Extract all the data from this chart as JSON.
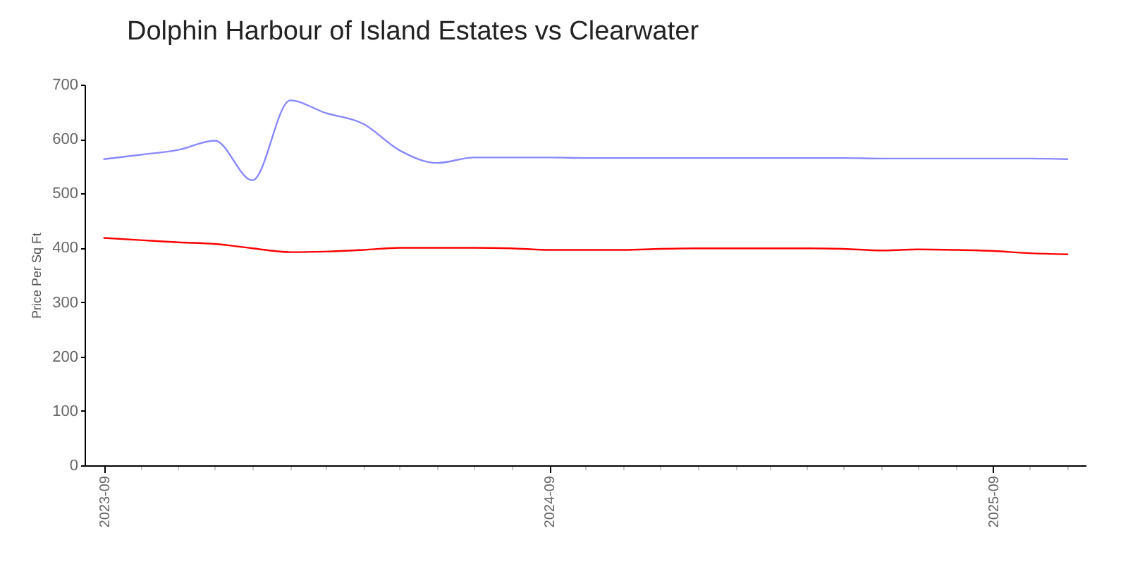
{
  "chart_data": {
    "type": "line",
    "title": "Dolphin Harbour of Island Estates vs Clearwater",
    "ylabel": "Price Per Sq Ft",
    "x": [
      "2023-09",
      "2023-10",
      "2023-11",
      "2023-12",
      "2024-01",
      "2024-02",
      "2024-03",
      "2024-04",
      "2024-05",
      "2024-06",
      "2024-07",
      "2024-08",
      "2024-09",
      "2024-10",
      "2024-11",
      "2024-12",
      "2025-01",
      "2025-02",
      "2025-03",
      "2025-04",
      "2025-05",
      "2025-06",
      "2025-07",
      "2025-08",
      "2025-09",
      "2025-10",
      "2025-11"
    ],
    "series": [
      {
        "color": "#8888ff",
        "values": [
          563,
          571,
          580,
          597,
          524,
          671,
          648,
          628,
          579,
          556,
          566,
          566,
          566,
          565,
          565,
          565,
          565,
          565,
          565,
          565,
          565,
          564,
          564,
          564,
          564,
          564,
          563
        ]
      },
      {
        "color": "#ff0000",
        "values": [
          418,
          414,
          410,
          407,
          399,
          392,
          393,
          396,
          400,
          400,
          400,
          399,
          396,
          396,
          396,
          398,
          399,
          399,
          399,
          399,
          398,
          395,
          397,
          396,
          394,
          390,
          388
        ]
      }
    ],
    "xlim": [
      "2023-08-16",
      "2025-11-16"
    ],
    "xticks": [
      "2023-09",
      {
        "value": "2023-10",
        "label": null
      },
      {
        "value": "2023-11",
        "label": null
      },
      {
        "value": "2023-12",
        "label": null
      },
      {
        "value": "2024-01",
        "label": null
      },
      {
        "value": "2024-02",
        "label": null
      },
      {
        "value": "2024-03",
        "label": null
      },
      {
        "value": "2024-04",
        "label": null
      },
      {
        "value": "2024-05",
        "label": null
      },
      {
        "value": "2024-06",
        "label": null
      },
      {
        "value": "2024-07",
        "label": null
      },
      {
        "value": "2024-08",
        "label": null
      },
      "2024-09",
      {
        "value": "2024-10",
        "label": null
      },
      {
        "value": "2024-11",
        "label": null
      },
      {
        "value": "2024-12",
        "label": null
      },
      {
        "value": "2025-01",
        "label": null
      },
      {
        "value": "2025-02",
        "label": null
      },
      {
        "value": "2025-03",
        "label": null
      },
      {
        "value": "2025-04",
        "label": null
      },
      {
        "value": "2025-05",
        "label": null
      },
      {
        "value": "2025-06",
        "label": null
      },
      {
        "value": "2025-07",
        "label": null
      },
      {
        "value": "2025-08",
        "label": null
      },
      "2025-09",
      {
        "value": "2025-10",
        "label": null
      },
      {
        "value": "2025-11",
        "label": null
      }
    ],
    "ylim": [
      0,
      700
    ],
    "yticks": [
      0,
      100,
      200,
      300,
      400,
      500,
      600,
      700
    ]
  }
}
